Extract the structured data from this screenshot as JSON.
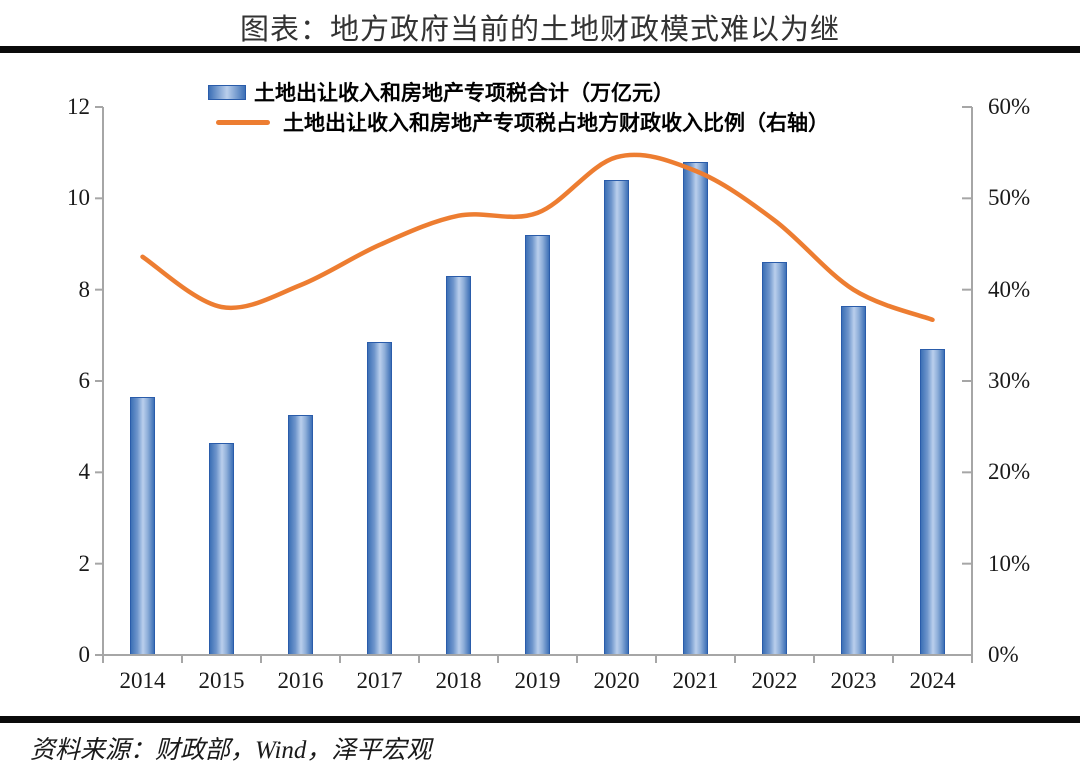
{
  "page": {
    "title": "图表：地方政府当前的土地财政模式难以为继",
    "source": "资料来源：财政部，Wind，泽平宏观"
  },
  "legend": {
    "bar_label": "土地出让收入和房地产专项税合计（万亿元）",
    "line_label": "土地出让收入和房地产专项税占地方财政收入比例（右轴）"
  },
  "colors": {
    "bar_edge": "#3D70B6",
    "bar_mid": "#BACFEC",
    "bar_border": "#2A5CAA",
    "line": "#ED7D31",
    "axis": "#A6A6A6",
    "rule": "#0A0A0A"
  },
  "chart_data": {
    "type": "bar",
    "combo": "bar+line dual-axis",
    "title": "图表：地方政府当前的土地财政模式难以为继",
    "categories": [
      "2014",
      "2015",
      "2016",
      "2017",
      "2018",
      "2019",
      "2020",
      "2021",
      "2022",
      "2023",
      "2024"
    ],
    "series": [
      {
        "name": "土地出让收入和房地产专项税合计（万亿元）",
        "type": "bar",
        "axis": "left",
        "unit": "万亿元",
        "values": [
          5.65,
          4.65,
          5.25,
          6.85,
          8.3,
          9.2,
          10.4,
          10.8,
          8.6,
          7.65,
          6.7
        ]
      },
      {
        "name": "土地出让收入和房地产专项税占地方财政收入比例（右轴）",
        "type": "line",
        "axis": "right",
        "unit": "%",
        "values": [
          43.6,
          38.1,
          40.5,
          44.9,
          48.1,
          48.4,
          54.5,
          53.0,
          47.6,
          40.0,
          36.7
        ]
      }
    ],
    "left_axis": {
      "range": [
        0,
        12
      ],
      "ticks": [
        0,
        2,
        4,
        6,
        8,
        10,
        12
      ]
    },
    "right_axis": {
      "range_pct": [
        0,
        60
      ],
      "tick_labels": [
        "0%",
        "10%",
        "20%",
        "30%",
        "40%",
        "50%",
        "60%"
      ]
    },
    "grid": false,
    "legend_position": "top-center",
    "xlabel": "",
    "ylabel_left": "万亿元",
    "ylabel_right": "%"
  }
}
